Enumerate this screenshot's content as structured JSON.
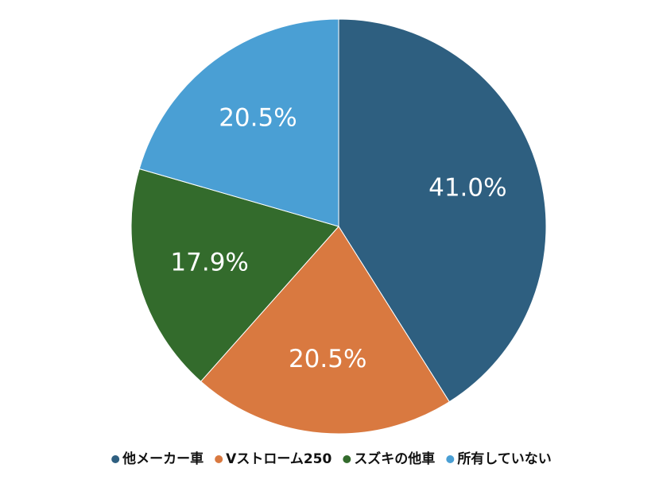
{
  "chart_data": {
    "type": "pie",
    "categories": [
      "他メーカー車",
      "Vストローム250",
      "スズキの他車",
      "所有していない"
    ],
    "values": [
      41.0,
      20.5,
      17.9,
      20.5
    ],
    "value_labels": [
      "41.0%",
      "20.5%",
      "17.9%",
      "20.5%"
    ],
    "colors": [
      "#2e5f80",
      "#d97940",
      "#336b2c",
      "#4a9fd4"
    ],
    "legend": "bottom"
  }
}
